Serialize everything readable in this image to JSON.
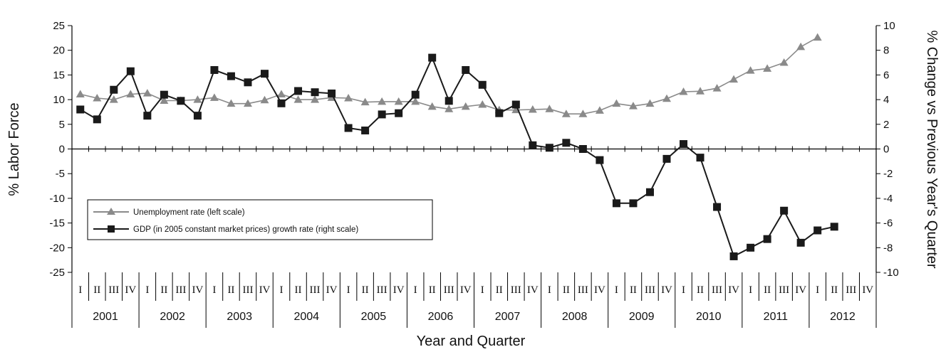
{
  "chart_data": {
    "type": "line",
    "xlabel": "Year and Quarter",
    "ylabel_left": "% Labor Force",
    "ylabel_right": "% Change vs Previous Year's Quarter",
    "ylim_left": [
      -25,
      25
    ],
    "yticks_left": [
      25,
      20,
      15,
      10,
      5,
      0,
      -5,
      -10,
      -15,
      -20,
      -25
    ],
    "ylim_right": [
      -10,
      10
    ],
    "yticks_right": [
      10,
      8,
      6,
      4,
      2,
      0,
      -2,
      -4,
      -6,
      -8,
      -10
    ],
    "years": [
      "2001",
      "2002",
      "2003",
      "2004",
      "2005",
      "2006",
      "2007",
      "2008",
      "2009",
      "2010",
      "2011",
      "2012"
    ],
    "quarters": [
      "I",
      "II",
      "III",
      "IV"
    ],
    "legend_position": "lower-left",
    "series": [
      {
        "name": "Unemployment rate (left scale)",
        "axis": "left",
        "marker": "triangle",
        "color": "#8a8a8a",
        "values": [
          11.1,
          10.3,
          10.0,
          11.1,
          11.3,
          9.8,
          9.8,
          10.0,
          10.4,
          9.2,
          9.2,
          9.9,
          11.1,
          10.0,
          10.0,
          10.4,
          10.3,
          9.5,
          9.6,
          9.6,
          9.6,
          8.6,
          8.1,
          8.6,
          9.0,
          7.9,
          7.9,
          8.0,
          8.1,
          7.1,
          7.1,
          7.8,
          9.2,
          8.7,
          9.2,
          10.2,
          11.6,
          11.7,
          12.3,
          14.1,
          15.9,
          16.3,
          17.5,
          20.7,
          22.6,
          null,
          null,
          null
        ]
      },
      {
        "name": "GDP (in 2005 constant market prices) growth rate (right scale)",
        "axis": "right",
        "marker": "square",
        "color": "#1a1a1a",
        "values": [
          3.2,
          2.4,
          4.8,
          6.3,
          2.7,
          4.4,
          3.9,
          2.7,
          6.4,
          5.9,
          5.4,
          6.1,
          3.7,
          4.7,
          4.6,
          4.5,
          1.7,
          1.5,
          2.8,
          2.9,
          4.4,
          7.4,
          3.9,
          6.4,
          5.2,
          2.9,
          3.6,
          0.3,
          0.1,
          0.5,
          0.0,
          -0.9,
          -4.4,
          -4.4,
          -3.5,
          -0.8,
          0.4,
          -0.7,
          -4.7,
          -8.7,
          -8.0,
          -7.3,
          -5.0,
          -7.6,
          -6.6,
          -6.3,
          null,
          null
        ]
      }
    ]
  }
}
